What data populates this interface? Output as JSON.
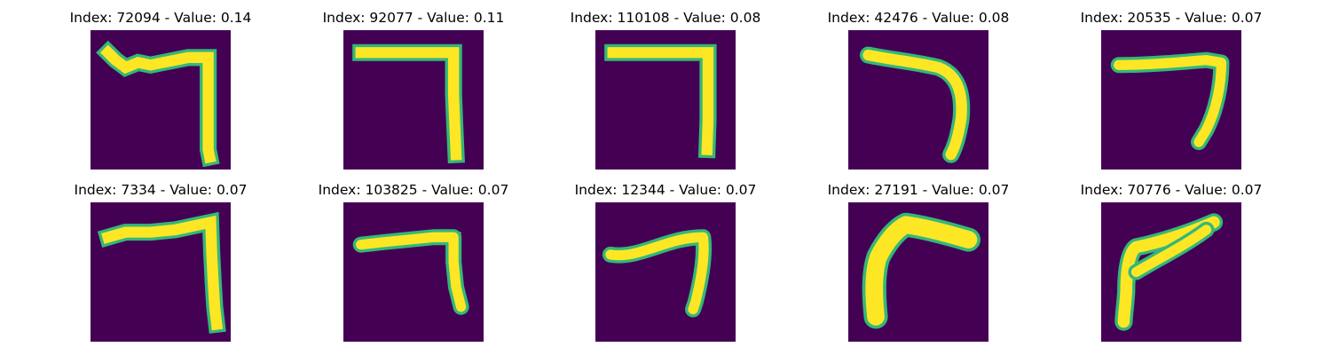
{
  "panels": [
    {
      "title": "Index: 72094 - Value: 0.14",
      "background": "#440154",
      "stroke": "#fde725",
      "edge": "#35b779"
    },
    {
      "title": "Index: 92077 - Value: 0.11",
      "background": "#440154",
      "stroke": "#fde725",
      "edge": "#35b779"
    },
    {
      "title": "Index: 110108 - Value: 0.08",
      "background": "#440154",
      "stroke": "#fde725",
      "edge": "#35b779"
    },
    {
      "title": "Index: 42476 - Value: 0.08",
      "background": "#440154",
      "stroke": "#fde725",
      "edge": "#35b779"
    },
    {
      "title": "Index: 20535 - Value: 0.07",
      "background": "#440154",
      "stroke": "#fde725",
      "edge": "#35b779"
    },
    {
      "title": "Index: 7334 - Value: 0.07",
      "background": "#440154",
      "stroke": "#fde725",
      "edge": "#35b779"
    },
    {
      "title": "Index: 103825 - Value: 0.07",
      "background": "#440154",
      "stroke": "#fde725",
      "edge": "#35b779"
    },
    {
      "title": "Index: 12344 - Value: 0.07",
      "background": "#440154",
      "stroke": "#fde725",
      "edge": "#35b779"
    },
    {
      "title": "Index: 27191 - Value: 0.07",
      "background": "#440154",
      "stroke": "#fde725",
      "edge": "#35b779"
    },
    {
      "title": "Index: 70776 - Value: 0.07",
      "background": "#440154",
      "stroke": "#fde725",
      "edge": "#35b779"
    }
  ]
}
